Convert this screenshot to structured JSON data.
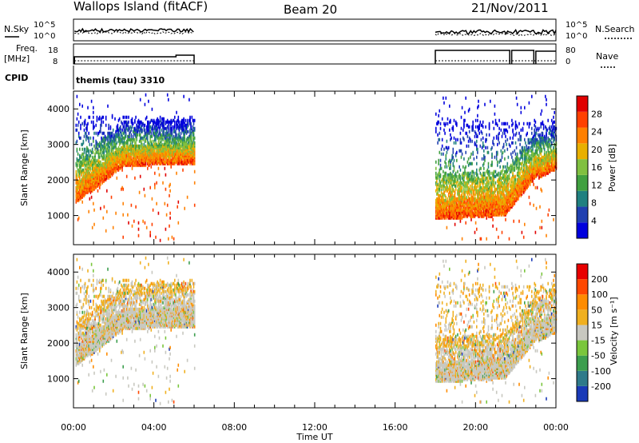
{
  "header": {
    "station": "Wallops Island (fitACF)",
    "beam": "Beam 20",
    "date": "21/Nov/2011"
  },
  "aux": {
    "nsky_label": "N.Sky",
    "nsearch_label": "N.Search",
    "noise_ticks": [
      "10^5",
      "10^0"
    ],
    "freq_label": "Freq.",
    "freq_unit": "[MHz]",
    "freq_ticks": [
      "18",
      "8"
    ],
    "nave_label": "Nave",
    "nave_ticks": [
      "80",
      "0"
    ],
    "cpid_label": "CPID",
    "cpid_text": "themis (tau) 3310"
  },
  "time_axis": {
    "label": "Time UT",
    "ticks": [
      "00:00",
      "04:00",
      "08:00",
      "12:00",
      "16:00",
      "20:00",
      "00:00"
    ],
    "range_hours": [
      0,
      24
    ]
  },
  "colors": {
    "power": [
      "#0000dd",
      "#2040b0",
      "#208080",
      "#40a040",
      "#80c040",
      "#e8b000",
      "#ff8000",
      "#ff4000",
      "#e00000"
    ],
    "velocity": [
      "#1a3ab8",
      "#2f7a8a",
      "#3c9e4e",
      "#7ac63c",
      "#c8c8c0",
      "#f0b020",
      "#ff8c00",
      "#ff4800",
      "#e80000"
    ]
  },
  "chart_data": [
    {
      "type": "heatmap",
      "name": "power",
      "ylabel": "Slant Range [km]",
      "yticks": [
        "1000",
        "2000",
        "3000",
        "4000"
      ],
      "ylim": [
        180,
        4500
      ],
      "xlim": [
        0,
        24
      ],
      "colorbar": {
        "label": "Power [dB]",
        "ticks": [
          "4",
          "8",
          "12",
          "16",
          "20",
          "24",
          "28"
        ],
        "range": [
          0,
          32
        ]
      },
      "echo_regions": [
        {
          "t_start": 0.1,
          "t_end": 6.0,
          "range_low": 1300,
          "range_high": 3800,
          "value_low": 28,
          "value_high": 8
        },
        {
          "t_start": 18.0,
          "t_end": 24.0,
          "range_low": 900,
          "range_high": 3700,
          "value_low": 28,
          "value_high": 16
        }
      ]
    },
    {
      "type": "heatmap",
      "name": "velocity",
      "ylabel": "Slant Range [km]",
      "yticks": [
        "1000",
        "2000",
        "3000",
        "4000"
      ],
      "ylim": [
        180,
        4500
      ],
      "xlim": [
        0,
        24
      ],
      "colorbar": {
        "label": "Velocity [m s⁻¹]",
        "ticks": [
          "200",
          "100",
          "50",
          "15",
          "-15",
          "-50",
          "-100",
          "-200"
        ]
      },
      "echo_regions": [
        {
          "t_start": 0.1,
          "t_end": 6.0,
          "range_low": 1300,
          "range_high": 3800,
          "value_dominant": -15
        },
        {
          "t_start": 18.0,
          "t_end": 24.0,
          "range_low": 900,
          "range_high": 3700,
          "value_dominant": -15
        }
      ]
    }
  ]
}
